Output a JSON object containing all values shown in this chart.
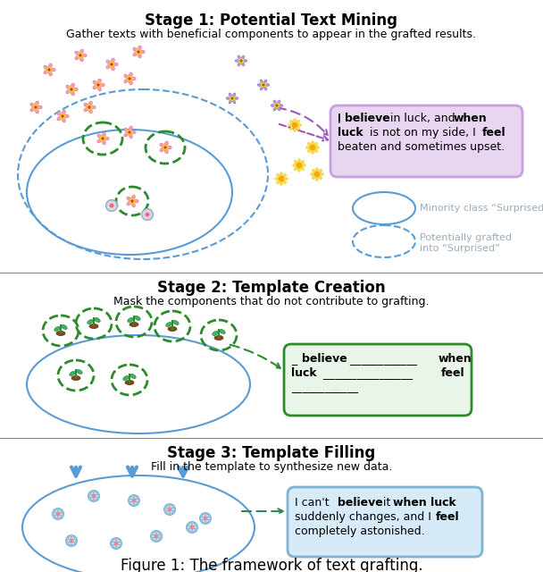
{
  "title": "Figure 1: The framework of text grafting.",
  "stage1_title": "Stage 1: Potential Text Mining",
  "stage1_desc": "Gather texts with beneficial components to appear in the grafted results.",
  "stage2_title": "Stage 2: Template Creation",
  "stage2_desc": "Mask the components that do not contribute to grafting.",
  "stage3_title": "Stage 3: Template Filling",
  "stage3_desc": "Fill in the template to synthesize new data.",
  "box1_text_parts": [
    [
      "I ",
      false
    ],
    [
      "believe",
      true
    ],
    [
      " in luck, and ",
      false
    ],
    [
      "when\nluck",
      true
    ],
    [
      " is not on my side, I ",
      false
    ],
    [
      "feel",
      true
    ],
    [
      "\nbeaten and sometimes upset.",
      false
    ]
  ],
  "box1_bg": "#e8d5f0",
  "box1_border": "#c9a0dc",
  "box2_text_parts": [
    [
      "_ ",
      false
    ],
    [
      "believe",
      true
    ],
    [
      " ____________ ",
      false
    ],
    [
      "when\nluck",
      true
    ],
    [
      " ________________ ",
      false
    ],
    [
      "feel",
      true
    ]
  ],
  "box2_line": "____________",
  "box2_bg": "#e8f5e8",
  "box2_border": "#2d8a2d",
  "box3_text_parts": [
    [
      "I can't ",
      false
    ],
    [
      "believe",
      true
    ],
    [
      " it ",
      false
    ],
    [
      "when luck",
      true
    ],
    [
      "\nsuddenly changes, and I ",
      false
    ],
    [
      "feel",
      true
    ],
    [
      "\ncompletely astonished.",
      false
    ]
  ],
  "box3_bg": "#d6eaf8",
  "box3_border": "#7fb3d3",
  "legend1_text": "Minority class “Surprised”",
  "legend2_text": "Potentially grafted\ninto “Surprised”",
  "dashed_arrow_color": "#9b59b6",
  "dashed_connector_color": "#2e8b57",
  "blue_arrow_color": "#5b9bd5",
  "background_color": "#ffffff"
}
